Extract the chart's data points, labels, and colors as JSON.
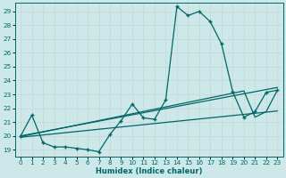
{
  "title": "",
  "xlabel": "Humidex (Indice chaleur)",
  "background_color": "#cde8e8",
  "grid_color": "#c8d8d8",
  "line_color": "#006666",
  "xlim": [
    -0.5,
    23.5
  ],
  "ylim": [
    18.5,
    29.6
  ],
  "xticks": [
    0,
    1,
    2,
    3,
    4,
    5,
    6,
    7,
    8,
    9,
    10,
    11,
    12,
    13,
    14,
    15,
    16,
    17,
    18,
    19,
    20,
    21,
    22,
    23
  ],
  "yticks": [
    19,
    20,
    21,
    22,
    23,
    24,
    25,
    26,
    27,
    28,
    29
  ],
  "main_x": [
    0,
    1,
    2,
    3,
    4,
    5,
    6,
    7,
    8,
    9,
    10,
    11,
    12,
    13,
    14,
    15,
    16,
    17,
    18,
    19,
    20,
    21,
    22,
    23
  ],
  "main_y": [
    20,
    21.5,
    19.5,
    19.2,
    19.2,
    19.1,
    19.0,
    18.85,
    20.1,
    21.1,
    22.3,
    21.3,
    21.2,
    22.6,
    29.35,
    28.7,
    29.0,
    28.25,
    26.65,
    23.2,
    21.35,
    21.75,
    23.15,
    23.3
  ],
  "line1_x": [
    0,
    23
  ],
  "line1_y": [
    20.0,
    23.5
  ],
  "line2_x": [
    0,
    20,
    21,
    22,
    23
  ],
  "line2_y": [
    19.95,
    23.25,
    21.35,
    21.75,
    23.3
  ],
  "line3_x": [
    0,
    23
  ],
  "line3_y": [
    19.9,
    21.8
  ]
}
